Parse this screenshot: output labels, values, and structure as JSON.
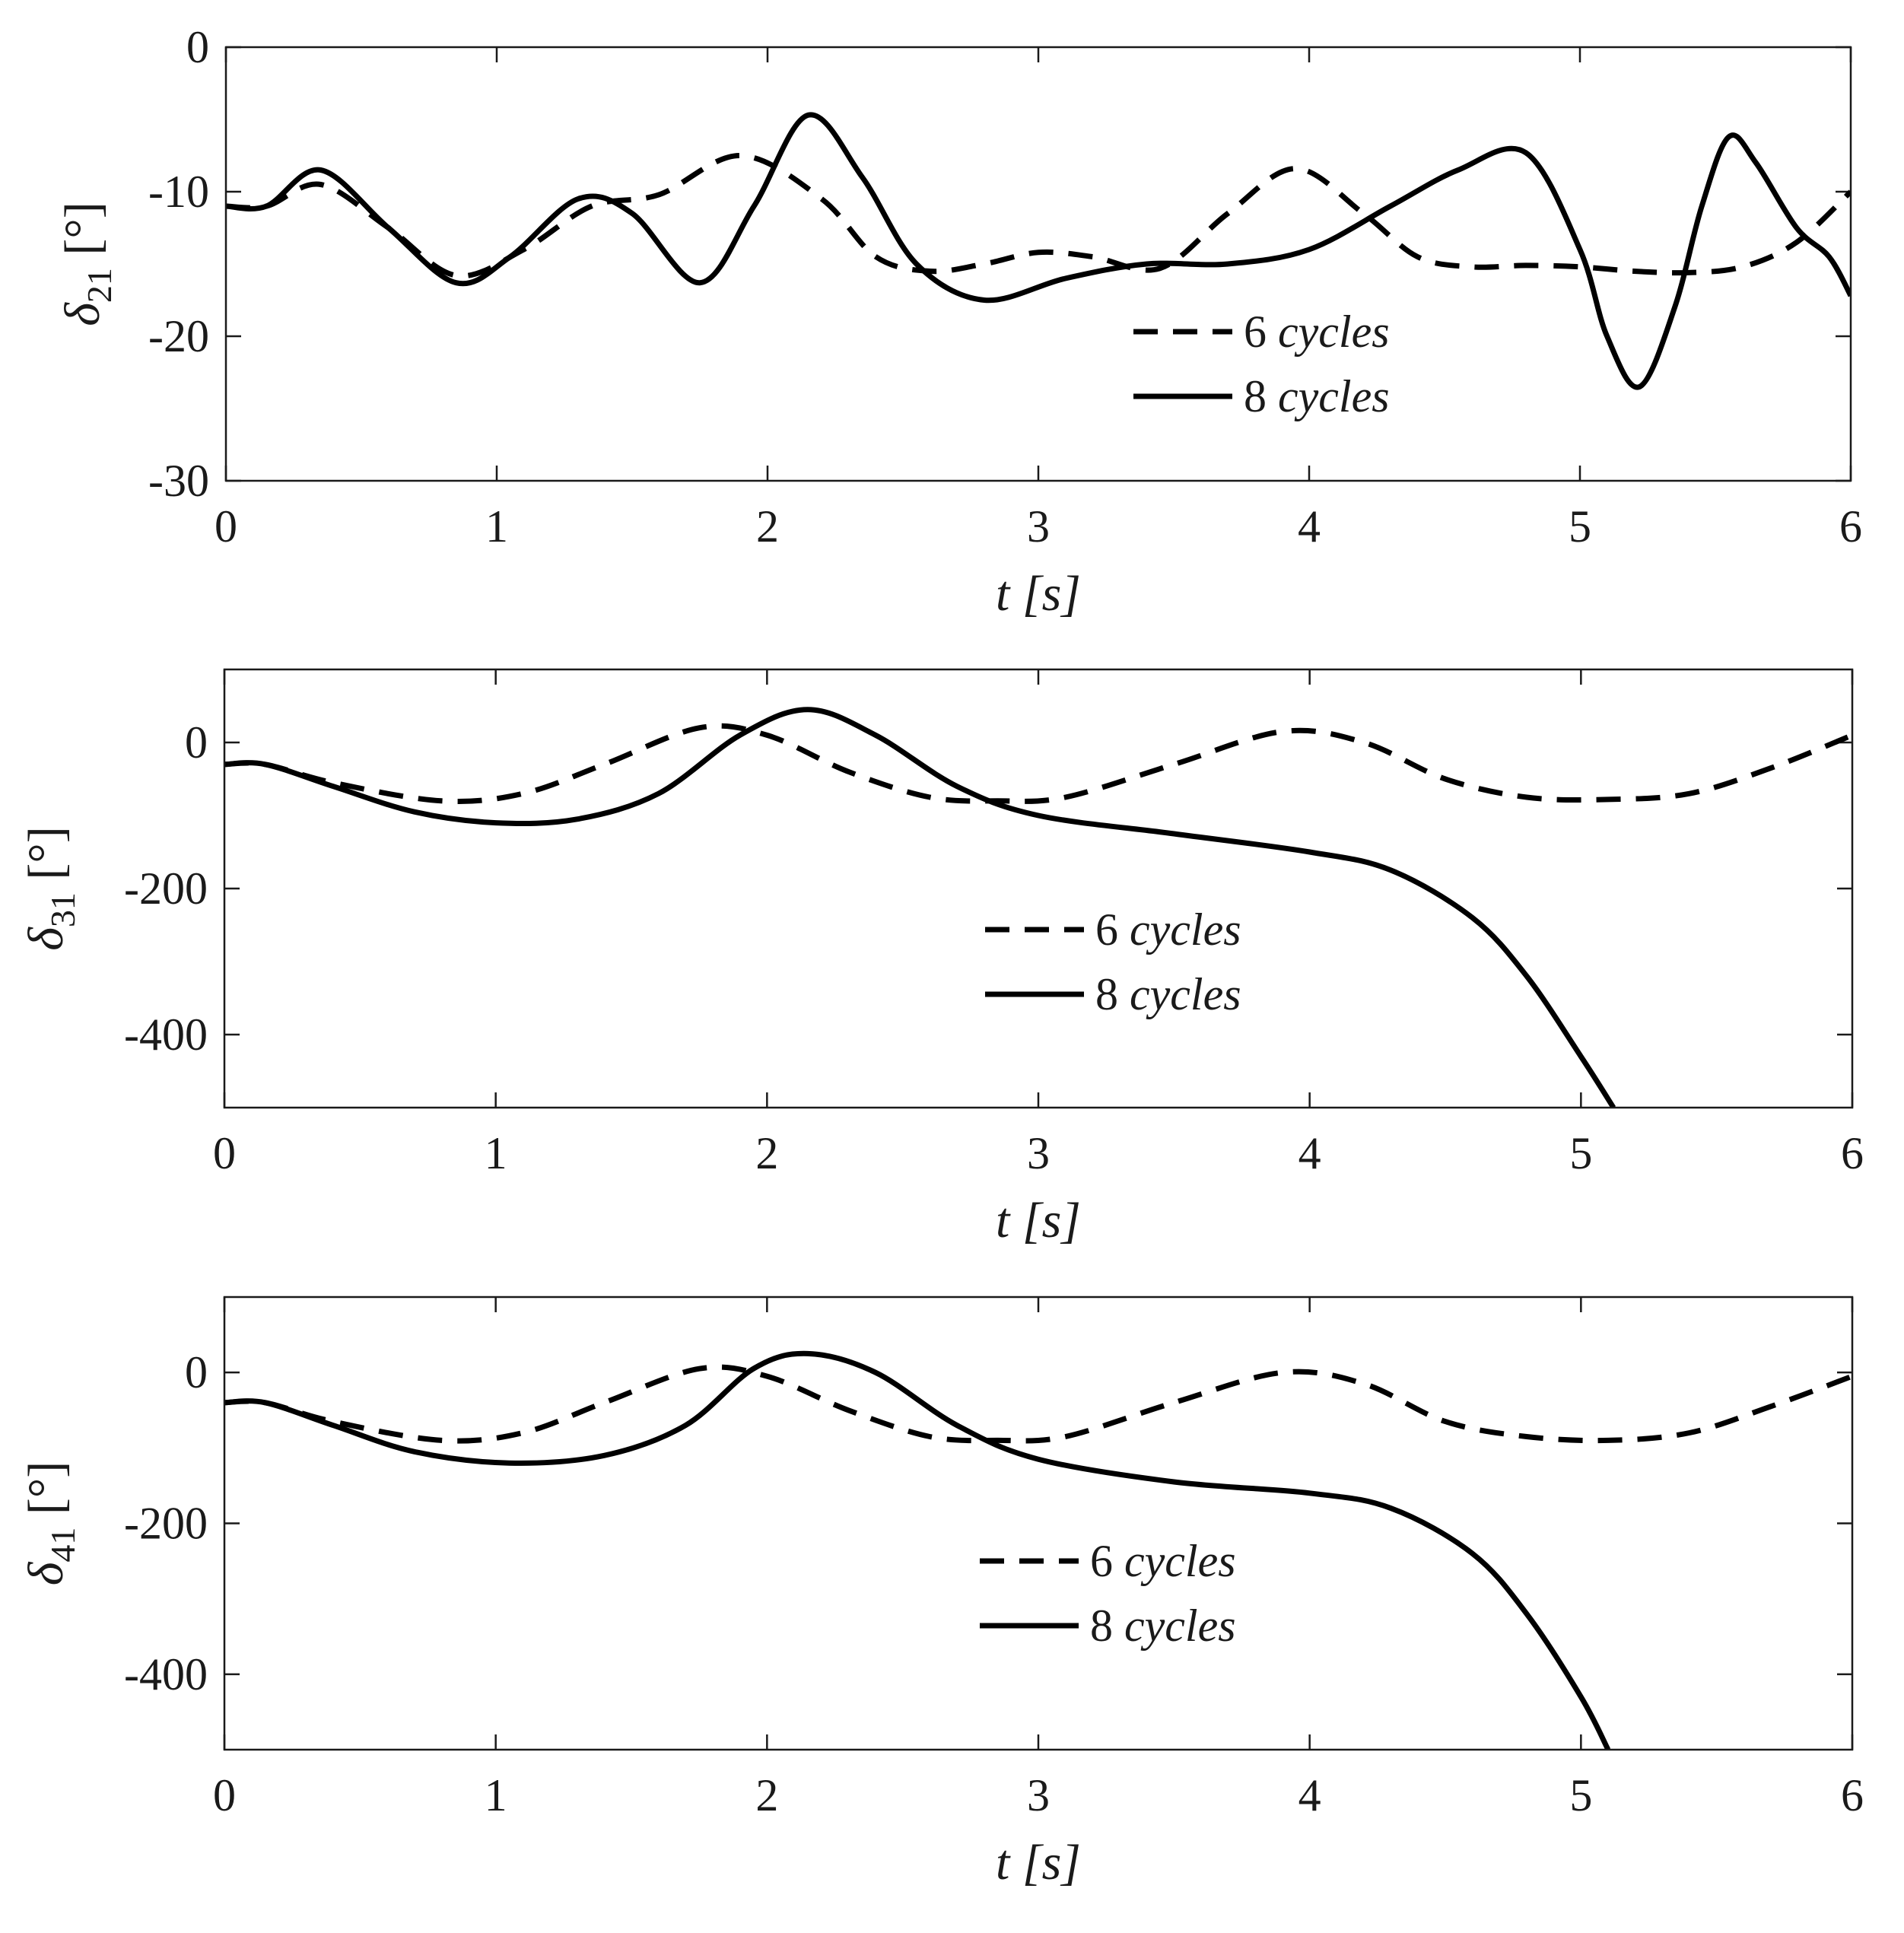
{
  "figure_title": "",
  "legend": {
    "dashed_number": "6",
    "dashed_word": "cycles",
    "solid_number": "8",
    "solid_word": "cycles"
  },
  "chart_data": [
    {
      "type": "line",
      "title": "",
      "xlabel_var": "t",
      "xlabel_unit": "[s]",
      "ylabel_sym": "δ",
      "ylabel_sub": "21",
      "ylabel_unit": "[°]",
      "xlim": [
        0,
        6
      ],
      "ylim": [
        -30,
        0
      ],
      "xticks": [
        0,
        1,
        2,
        3,
        4,
        5,
        6
      ],
      "yticks": [
        0,
        -10,
        -20,
        -30
      ],
      "xtick_labels": [
        "0",
        "1",
        "2",
        "3",
        "4",
        "5",
        "6"
      ],
      "ytick_labels": [
        "0",
        "-10",
        "-20",
        "-30"
      ],
      "legend_position": "bottom-center-right",
      "series": [
        {
          "name": "6 cycles",
          "style": "dashed",
          "x": [
            0,
            0.15,
            0.35,
            0.6,
            0.85,
            1.1,
            1.35,
            1.6,
            1.9,
            2.2,
            2.4,
            2.6,
            2.8,
            3.0,
            3.2,
            3.45,
            3.7,
            3.95,
            4.2,
            4.4,
            4.6,
            4.8,
            5.0,
            5.2,
            5.4,
            5.6,
            5.8,
            6.0
          ],
          "y": [
            -11,
            -11,
            -9.5,
            -12.5,
            -15.8,
            -14,
            -11,
            -10.2,
            -7.5,
            -10.5,
            -14.5,
            -15.5,
            -15,
            -14.2,
            -14.5,
            -15.3,
            -11.5,
            -8.4,
            -11.5,
            -14.5,
            -15.2,
            -15.1,
            -15.2,
            -15.5,
            -15.6,
            -15.2,
            -13.5,
            -10
          ]
        },
        {
          "name": "8 cycles",
          "style": "solid",
          "x": [
            0,
            0.15,
            0.35,
            0.6,
            0.85,
            1.05,
            1.3,
            1.5,
            1.75,
            1.95,
            2.15,
            2.35,
            2.55,
            2.8,
            3.1,
            3.4,
            3.7,
            4.0,
            4.3,
            4.55,
            4.8,
            5.0,
            5.1,
            5.22,
            5.35,
            5.45,
            5.55,
            5.65,
            5.8,
            5.92,
            6.0
          ],
          "y": [
            -11,
            -11,
            -8.5,
            -12.5,
            -16.3,
            -14.5,
            -10.5,
            -11.5,
            -16.3,
            -11,
            -4.7,
            -9,
            -15,
            -17.5,
            -16,
            -15,
            -15,
            -14,
            -11,
            -8.5,
            -7.3,
            -14,
            -20,
            -23.5,
            -18,
            -11,
            -6.2,
            -8,
            -12.5,
            -14.5,
            -17.2
          ]
        }
      ]
    },
    {
      "type": "line",
      "title": "",
      "xlabel_var": "t",
      "xlabel_unit": "[s]",
      "ylabel_sym": "δ",
      "ylabel_sub": "31",
      "ylabel_unit": "[°]",
      "xlim": [
        0,
        6
      ],
      "ylim": [
        -500,
        100
      ],
      "xticks": [
        0,
        1,
        2,
        3,
        4,
        5,
        6
      ],
      "yticks": [
        0,
        -200,
        -400
      ],
      "xtick_labels": [
        "0",
        "1",
        "2",
        "3",
        "4",
        "5",
        "6"
      ],
      "ytick_labels": [
        "0",
        "-200",
        "-400"
      ],
      "legend_position": "center",
      "series": [
        {
          "name": "6 cycles",
          "style": "dashed",
          "x": [
            0,
            0.15,
            0.4,
            0.8,
            1.1,
            1.4,
            1.75,
            2.0,
            2.3,
            2.6,
            2.85,
            3.1,
            3.5,
            3.9,
            4.2,
            4.5,
            4.8,
            5.1,
            5.4,
            5.7,
            6.0
          ],
          "y": [
            -30,
            -30,
            -55,
            -80,
            -70,
            -30,
            20,
            10,
            -40,
            -75,
            -80,
            -75,
            -30,
            15,
            0,
            -50,
            -75,
            -78,
            -70,
            -35,
            10
          ]
        },
        {
          "name": "8 cycles",
          "style": "solid",
          "x": [
            0,
            0.15,
            0.4,
            0.7,
            1.0,
            1.3,
            1.6,
            1.9,
            2.15,
            2.4,
            2.7,
            3.0,
            3.5,
            4.0,
            4.3,
            4.6,
            4.8,
            5.0,
            5.12
          ],
          "y": [
            -30,
            -30,
            -60,
            -95,
            -110,
            -105,
            -70,
            10,
            45,
            10,
            -60,
            -100,
            -125,
            -150,
            -175,
            -240,
            -320,
            -430,
            -500
          ]
        }
      ]
    },
    {
      "type": "line",
      "title": "",
      "xlabel_var": "t",
      "xlabel_unit": "[s]",
      "ylabel_sym": "δ",
      "ylabel_sub": "41",
      "ylabel_unit": "[°]",
      "xlim": [
        0,
        6
      ],
      "ylim": [
        -500,
        100
      ],
      "xticks": [
        0,
        1,
        2,
        3,
        4,
        5,
        6
      ],
      "yticks": [
        0,
        -200,
        -400
      ],
      "xtick_labels": [
        "0",
        "1",
        "2",
        "3",
        "4",
        "5",
        "6"
      ],
      "ytick_labels": [
        "0",
        "-200",
        "-400"
      ],
      "legend_position": "center",
      "series": [
        {
          "name": "6 cycles",
          "style": "dashed",
          "x": [
            0,
            0.15,
            0.4,
            0.8,
            1.1,
            1.4,
            1.75,
            2.0,
            2.3,
            2.6,
            2.85,
            3.1,
            3.5,
            3.9,
            4.2,
            4.5,
            4.8,
            5.1,
            5.4,
            5.7,
            6.0
          ],
          "y": [
            -40,
            -40,
            -65,
            -90,
            -80,
            -40,
            5,
            -5,
            -50,
            -85,
            -90,
            -85,
            -40,
            0,
            -15,
            -65,
            -85,
            -90,
            -80,
            -45,
            -5
          ]
        },
        {
          "name": "8 cycles",
          "style": "solid",
          "x": [
            0,
            0.15,
            0.4,
            0.7,
            1.05,
            1.4,
            1.7,
            1.95,
            2.15,
            2.4,
            2.7,
            3.0,
            3.5,
            4.0,
            4.3,
            4.6,
            4.8,
            5.0,
            5.1
          ],
          "y": [
            -40,
            -40,
            -70,
            -105,
            -120,
            -110,
            -70,
            5,
            25,
            0,
            -70,
            -115,
            -145,
            -160,
            -180,
            -240,
            -320,
            -430,
            -500
          ]
        }
      ]
    }
  ]
}
